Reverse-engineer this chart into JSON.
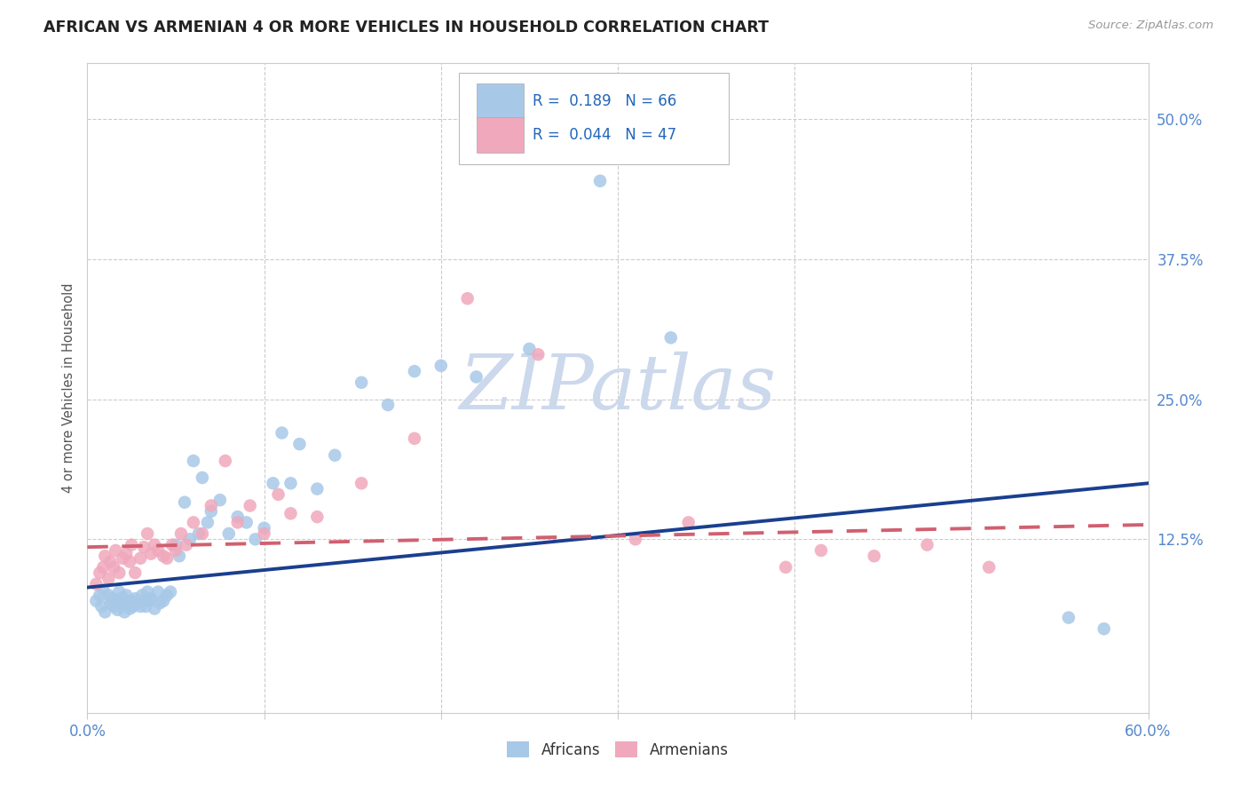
{
  "title": "AFRICAN VS ARMENIAN 4 OR MORE VEHICLES IN HOUSEHOLD CORRELATION CHART",
  "source": "Source: ZipAtlas.com",
  "ylabel": "4 or more Vehicles in Household",
  "xlim": [
    0.0,
    0.6
  ],
  "ylim": [
    -0.03,
    0.55
  ],
  "african_color": "#a8c8e8",
  "armenian_color": "#f0a8bc",
  "african_line_color": "#1a3f8f",
  "armenian_line_color": "#d06070",
  "african_R": 0.189,
  "african_N": 66,
  "armenian_R": 0.044,
  "armenian_N": 47,
  "africans_x": [
    0.005,
    0.007,
    0.008,
    0.009,
    0.01,
    0.012,
    0.013,
    0.014,
    0.015,
    0.016,
    0.017,
    0.018,
    0.019,
    0.02,
    0.021,
    0.022,
    0.023,
    0.024,
    0.025,
    0.026,
    0.027,
    0.028,
    0.03,
    0.031,
    0.032,
    0.033,
    0.034,
    0.035,
    0.036,
    0.038,
    0.04,
    0.041,
    0.043,
    0.045,
    0.047,
    0.05,
    0.052,
    0.055,
    0.058,
    0.06,
    0.063,
    0.065,
    0.068,
    0.07,
    0.075,
    0.08,
    0.085,
    0.09,
    0.095,
    0.1,
    0.105,
    0.11,
    0.115,
    0.12,
    0.13,
    0.14,
    0.155,
    0.17,
    0.185,
    0.2,
    0.22,
    0.25,
    0.29,
    0.33,
    0.555,
    0.575
  ],
  "africans_y": [
    0.07,
    0.075,
    0.065,
    0.08,
    0.06,
    0.075,
    0.068,
    0.072,
    0.065,
    0.07,
    0.062,
    0.078,
    0.067,
    0.073,
    0.06,
    0.075,
    0.068,
    0.063,
    0.07,
    0.065,
    0.072,
    0.068,
    0.065,
    0.075,
    0.07,
    0.065,
    0.078,
    0.07,
    0.072,
    0.063,
    0.078,
    0.068,
    0.07,
    0.075,
    0.078,
    0.12,
    0.11,
    0.158,
    0.125,
    0.195,
    0.13,
    0.18,
    0.14,
    0.15,
    0.16,
    0.13,
    0.145,
    0.14,
    0.125,
    0.135,
    0.175,
    0.22,
    0.175,
    0.21,
    0.17,
    0.2,
    0.265,
    0.245,
    0.275,
    0.28,
    0.27,
    0.295,
    0.445,
    0.305,
    0.055,
    0.045
  ],
  "armenians_x": [
    0.005,
    0.007,
    0.009,
    0.01,
    0.012,
    0.013,
    0.015,
    0.016,
    0.018,
    0.02,
    0.022,
    0.024,
    0.025,
    0.027,
    0.03,
    0.032,
    0.034,
    0.036,
    0.038,
    0.04,
    0.043,
    0.045,
    0.048,
    0.05,
    0.053,
    0.056,
    0.06,
    0.065,
    0.07,
    0.078,
    0.085,
    0.092,
    0.1,
    0.108,
    0.115,
    0.13,
    0.155,
    0.185,
    0.215,
    0.255,
    0.31,
    0.34,
    0.395,
    0.415,
    0.445,
    0.475,
    0.51
  ],
  "armenians_y": [
    0.085,
    0.095,
    0.1,
    0.11,
    0.09,
    0.105,
    0.1,
    0.115,
    0.095,
    0.108,
    0.112,
    0.105,
    0.12,
    0.095,
    0.108,
    0.118,
    0.13,
    0.112,
    0.12,
    0.115,
    0.11,
    0.108,
    0.12,
    0.115,
    0.13,
    0.12,
    0.14,
    0.13,
    0.155,
    0.195,
    0.14,
    0.155,
    0.13,
    0.165,
    0.148,
    0.145,
    0.175,
    0.215,
    0.34,
    0.29,
    0.125,
    0.14,
    0.1,
    0.115,
    0.11,
    0.12,
    0.1
  ],
  "background_color": "#ffffff",
  "grid_color": "#cccccc",
  "watermark_text": "ZIPatlas",
  "watermark_color": "#ccd8ec",
  "legend_entries": [
    "Africans",
    "Armenians"
  ],
  "african_line_x0": 0.0,
  "african_line_y0": 0.082,
  "african_line_x1": 0.6,
  "african_line_y1": 0.175,
  "armenian_line_x0": 0.0,
  "armenian_line_y0": 0.118,
  "armenian_line_x1": 0.6,
  "armenian_line_y1": 0.138
}
